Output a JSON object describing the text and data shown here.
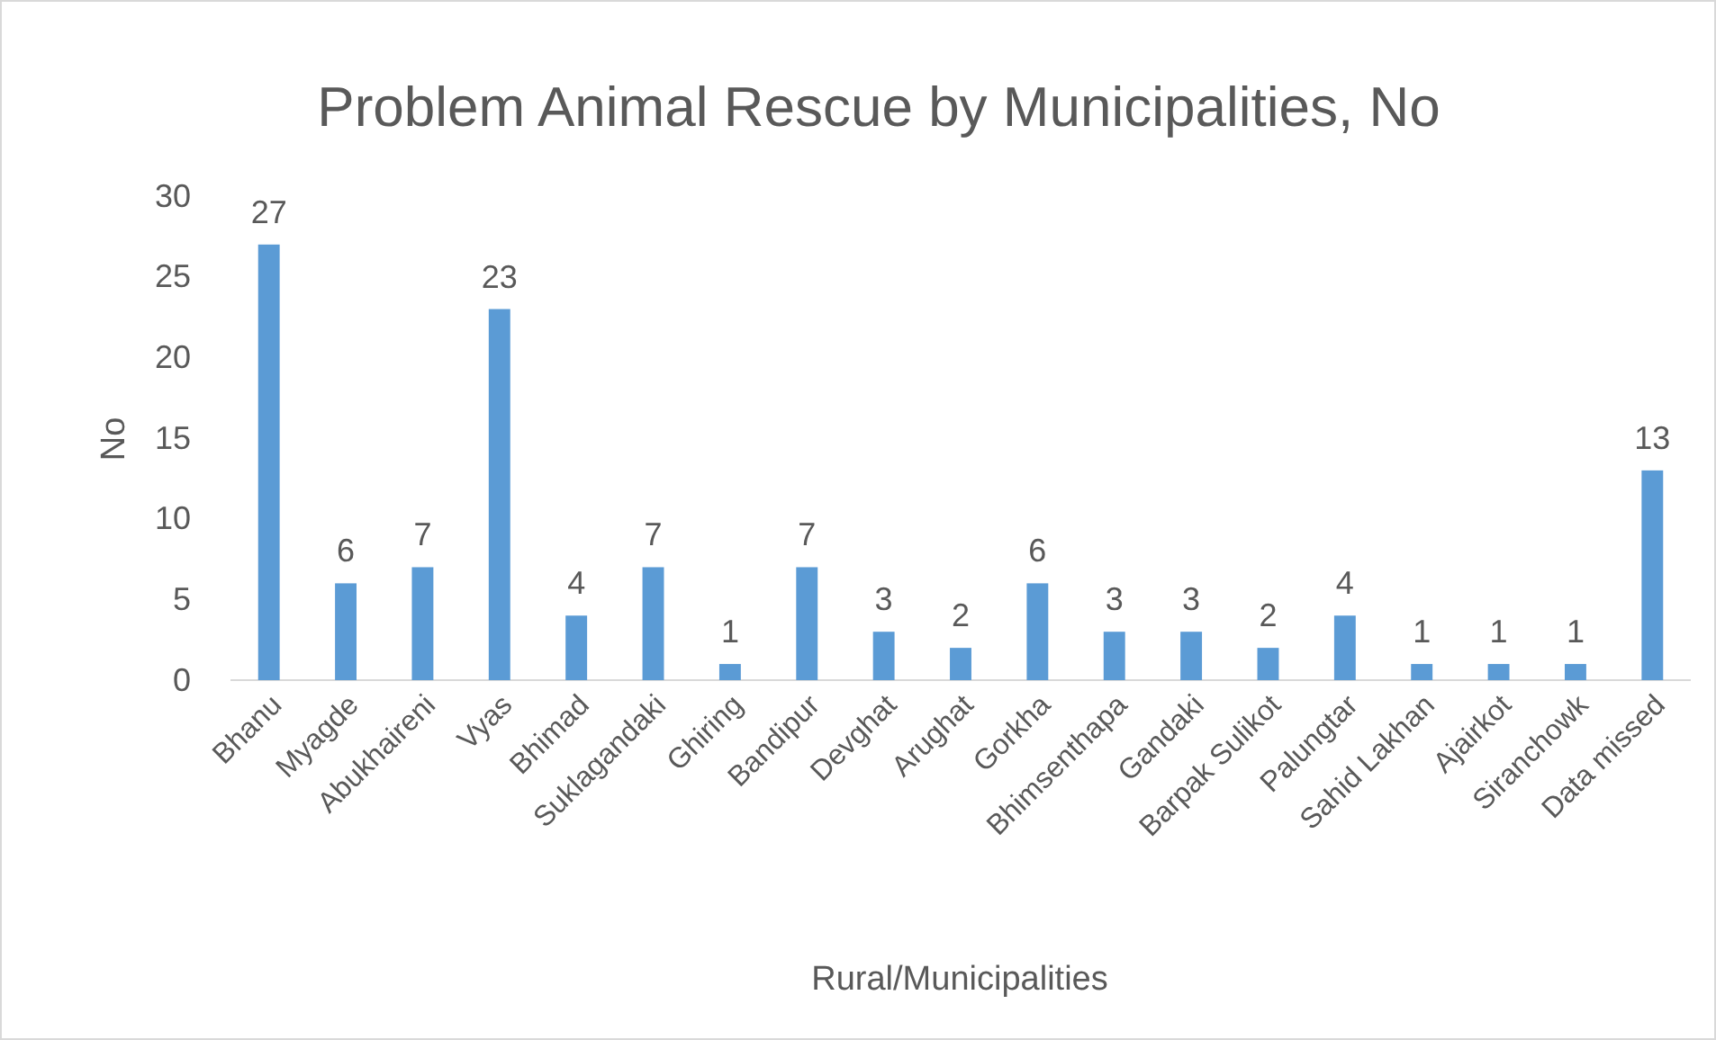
{
  "chart_data": {
    "type": "bar",
    "title": "Problem Animal Rescue by Municipalities, No",
    "xlabel": "Rural/Municipalities",
    "ylabel": "No",
    "categories": [
      "Bhanu",
      "Myagde",
      "Abukhaireni",
      "Vyas",
      "Bhimad",
      "Suklagandaki",
      "Ghiring",
      "Bandipur",
      "Devghat",
      "Arughat",
      "Gorkha",
      "Bhimsenthapa",
      "Gandaki",
      "Barpak Sulikot",
      "Palungtar",
      "Sahid Lakhan",
      "Ajairkot",
      "Siranchowk",
      "Data missed"
    ],
    "values": [
      27,
      6,
      7,
      23,
      4,
      7,
      1,
      7,
      3,
      2,
      6,
      3,
      3,
      2,
      4,
      1,
      1,
      1,
      13
    ],
    "color": "#5b9bd5",
    "ylim": [
      0,
      30
    ],
    "yticks": [
      0,
      5,
      10,
      15,
      20,
      25,
      30
    ],
    "grid": false,
    "data_labels": true
  }
}
